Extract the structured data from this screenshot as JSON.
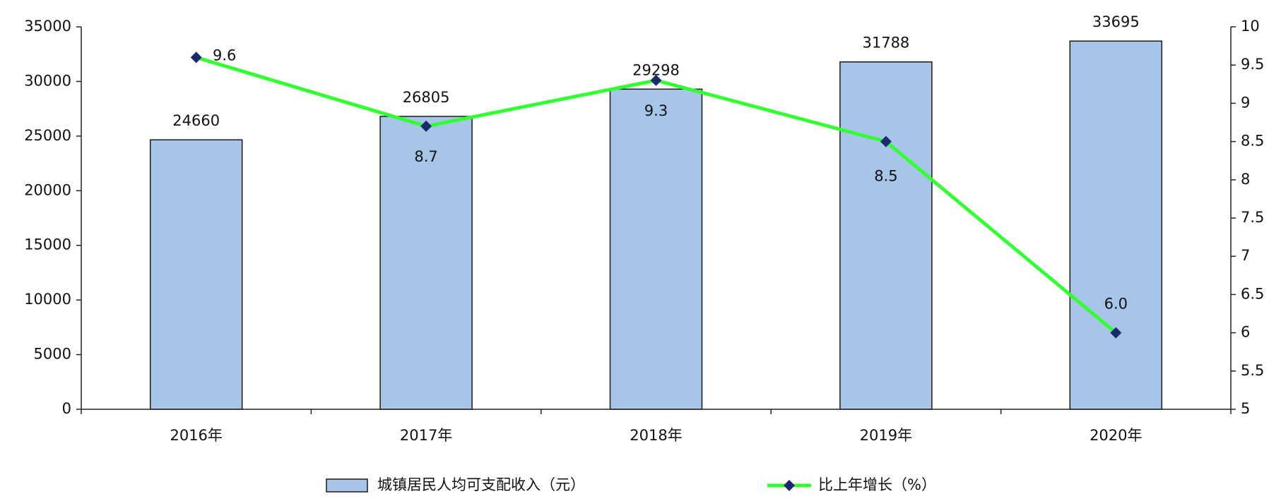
{
  "chart_data": {
    "type": "bar",
    "categories": [
      "2016年",
      "2017年",
      "2018年",
      "2019年",
      "2020年"
    ],
    "series": [
      {
        "name": "城镇居民人均可支配收入（元）",
        "type": "bar",
        "color": "#a6c5e8",
        "values": [
          24660,
          26805,
          29298,
          31788,
          33695
        ]
      },
      {
        "name": "比上年增长（%）",
        "type": "line",
        "axis": "y2",
        "color": "#33ff33",
        "marker_color": "#1a2a6c",
        "values": [
          9.6,
          8.7,
          9.3,
          8.5,
          6.0
        ],
        "value_labels": [
          "9.6",
          "8.7",
          "9.3",
          "8.5",
          "6.0"
        ]
      }
    ],
    "ylim": [
      0,
      35000
    ],
    "yticks": [
      0,
      5000,
      10000,
      15000,
      20000,
      25000,
      30000,
      35000
    ],
    "y2lim": [
      5,
      10
    ],
    "y2ticks": [
      5,
      5.5,
      6,
      6.5,
      7,
      7.5,
      8,
      8.5,
      9,
      9.5,
      10
    ]
  }
}
